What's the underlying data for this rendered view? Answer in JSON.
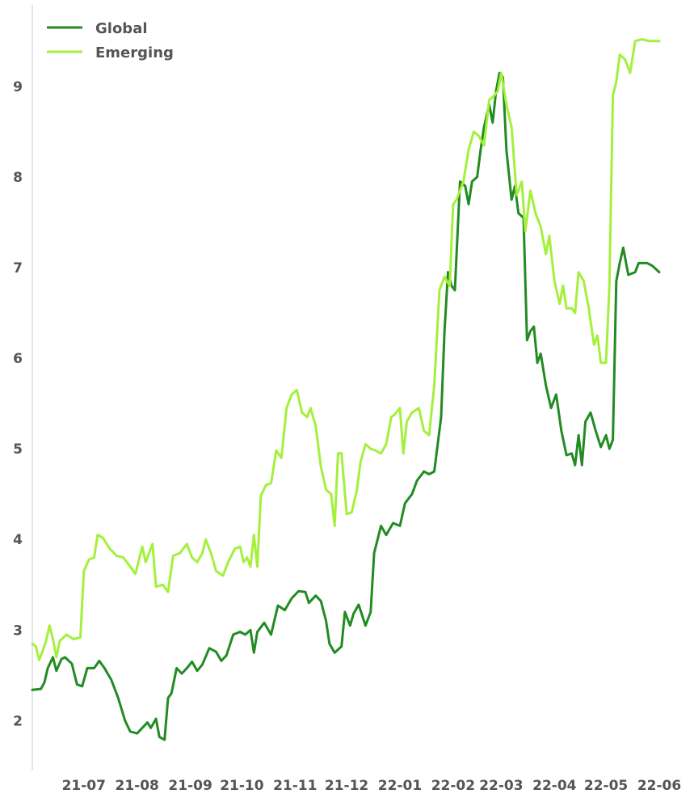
{
  "chart_data": {
    "type": "line",
    "title": "",
    "xlabel": "",
    "ylabel": "",
    "ylim": [
      1.45,
      9.9
    ],
    "xlim": [
      "2021-06-01",
      "2022-06-01"
    ],
    "grid": false,
    "legend_position": "top-left",
    "y_ticks": [
      2,
      3,
      4,
      5,
      6,
      7,
      8,
      9
    ],
    "x_ticks": [
      {
        "date": "2021-07-01",
        "label": "21-07"
      },
      {
        "date": "2021-08-01",
        "label": "21-08"
      },
      {
        "date": "2021-09-01",
        "label": "21-09"
      },
      {
        "date": "2021-10-01",
        "label": "21-10"
      },
      {
        "date": "2021-11-01",
        "label": "21-11"
      },
      {
        "date": "2021-12-01",
        "label": "21-12"
      },
      {
        "date": "2022-01-01",
        "label": "22-01"
      },
      {
        "date": "2022-02-01",
        "label": "22-02"
      },
      {
        "date": "2022-03-01",
        "label": "22-03"
      },
      {
        "date": "2022-04-01",
        "label": "22-04"
      },
      {
        "date": "2022-05-01",
        "label": "22-05"
      },
      {
        "date": "2022-06-01",
        "label": "22-06"
      }
    ],
    "series": [
      {
        "name": "Global",
        "color": "#228b22",
        "points": [
          [
            "2021-06-01",
            2.34
          ],
          [
            "2021-06-06",
            2.35
          ],
          [
            "2021-06-08",
            2.42
          ],
          [
            "2021-06-10",
            2.58
          ],
          [
            "2021-06-13",
            2.7
          ],
          [
            "2021-06-15",
            2.55
          ],
          [
            "2021-06-18",
            2.68
          ],
          [
            "2021-06-20",
            2.7
          ],
          [
            "2021-06-24",
            2.63
          ],
          [
            "2021-06-27",
            2.4
          ],
          [
            "2021-06-30",
            2.38
          ],
          [
            "2021-07-03",
            2.58
          ],
          [
            "2021-07-07",
            2.58
          ],
          [
            "2021-07-10",
            2.66
          ],
          [
            "2021-07-13",
            2.58
          ],
          [
            "2021-07-17",
            2.45
          ],
          [
            "2021-07-21",
            2.25
          ],
          [
            "2021-07-25",
            2.0
          ],
          [
            "2021-07-28",
            1.88
          ],
          [
            "2021-08-01",
            1.86
          ],
          [
            "2021-08-04",
            1.92
          ],
          [
            "2021-08-07",
            1.98
          ],
          [
            "2021-08-09",
            1.92
          ],
          [
            "2021-08-12",
            2.02
          ],
          [
            "2021-08-14",
            1.82
          ],
          [
            "2021-08-17",
            1.79
          ],
          [
            "2021-08-19",
            2.25
          ],
          [
            "2021-08-21",
            2.3
          ],
          [
            "2021-08-24",
            2.58
          ],
          [
            "2021-08-27",
            2.52
          ],
          [
            "2021-08-30",
            2.58
          ],
          [
            "2021-09-02",
            2.65
          ],
          [
            "2021-09-05",
            2.55
          ],
          [
            "2021-09-08",
            2.62
          ],
          [
            "2021-09-12",
            2.8
          ],
          [
            "2021-09-16",
            2.76
          ],
          [
            "2021-09-19",
            2.66
          ],
          [
            "2021-09-22",
            2.72
          ],
          [
            "2021-09-26",
            2.95
          ],
          [
            "2021-09-30",
            2.98
          ],
          [
            "2021-10-03",
            2.95
          ],
          [
            "2021-10-06",
            3.0
          ],
          [
            "2021-10-08",
            2.75
          ],
          [
            "2021-10-10",
            2.98
          ],
          [
            "2021-10-14",
            3.08
          ],
          [
            "2021-10-18",
            2.95
          ],
          [
            "2021-10-22",
            3.27
          ],
          [
            "2021-10-26",
            3.22
          ],
          [
            "2021-10-30",
            3.35
          ],
          [
            "2021-11-03",
            3.43
          ],
          [
            "2021-11-07",
            3.42
          ],
          [
            "2021-11-09",
            3.3
          ],
          [
            "2021-11-13",
            3.38
          ],
          [
            "2021-11-16",
            3.32
          ],
          [
            "2021-11-19",
            3.1
          ],
          [
            "2021-11-21",
            2.85
          ],
          [
            "2021-11-24",
            2.75
          ],
          [
            "2021-11-28",
            2.82
          ],
          [
            "2021-11-30",
            3.2
          ],
          [
            "2021-12-03",
            3.05
          ],
          [
            "2021-12-05",
            3.18
          ],
          [
            "2021-12-08",
            3.28
          ],
          [
            "2021-12-12",
            3.05
          ],
          [
            "2021-12-15",
            3.2
          ],
          [
            "2021-12-17",
            3.85
          ],
          [
            "2021-12-21",
            4.15
          ],
          [
            "2021-12-24",
            4.05
          ],
          [
            "2021-12-28",
            4.18
          ],
          [
            "2022-01-01",
            4.15
          ],
          [
            "2022-01-04",
            4.4
          ],
          [
            "2022-01-08",
            4.5
          ],
          [
            "2022-01-11",
            4.65
          ],
          [
            "2022-01-15",
            4.75
          ],
          [
            "2022-01-18",
            4.72
          ],
          [
            "2022-01-21",
            4.75
          ],
          [
            "2022-01-25",
            5.35
          ],
          [
            "2022-01-27",
            6.3
          ],
          [
            "2022-01-29",
            6.95
          ],
          [
            "2022-01-31",
            6.8
          ],
          [
            "2022-02-02",
            6.75
          ],
          [
            "2022-02-05",
            7.95
          ],
          [
            "2022-02-08",
            7.9
          ],
          [
            "2022-02-10",
            7.7
          ],
          [
            "2022-02-12",
            7.95
          ],
          [
            "2022-02-15",
            8.0
          ],
          [
            "2022-02-17",
            8.3
          ],
          [
            "2022-02-19",
            8.55
          ],
          [
            "2022-02-22",
            8.8
          ],
          [
            "2022-02-24",
            8.6
          ],
          [
            "2022-02-26",
            8.95
          ],
          [
            "2022-02-28",
            9.15
          ],
          [
            "2022-03-02",
            9.1
          ],
          [
            "2022-03-04",
            8.3
          ],
          [
            "2022-03-07",
            7.75
          ],
          [
            "2022-03-09",
            7.9
          ],
          [
            "2022-03-11",
            7.6
          ],
          [
            "2022-03-14",
            7.55
          ],
          [
            "2022-03-16",
            6.2
          ],
          [
            "2022-03-18",
            6.3
          ],
          [
            "2022-03-20",
            6.35
          ],
          [
            "2022-03-22",
            5.95
          ],
          [
            "2022-03-24",
            6.05
          ],
          [
            "2022-03-27",
            5.7
          ],
          [
            "2022-03-30",
            5.45
          ],
          [
            "2022-04-02",
            5.6
          ],
          [
            "2022-04-05",
            5.2
          ],
          [
            "2022-04-08",
            4.93
          ],
          [
            "2022-04-11",
            4.95
          ],
          [
            "2022-04-13",
            4.82
          ],
          [
            "2022-04-15",
            5.15
          ],
          [
            "2022-04-17",
            4.82
          ],
          [
            "2022-04-19",
            5.3
          ],
          [
            "2022-04-22",
            5.4
          ],
          [
            "2022-04-25",
            5.2
          ],
          [
            "2022-04-28",
            5.02
          ],
          [
            "2022-05-01",
            5.15
          ],
          [
            "2022-05-03",
            5.0
          ],
          [
            "2022-05-05",
            5.1
          ],
          [
            "2022-05-07",
            6.85
          ],
          [
            "2022-05-09",
            7.05
          ],
          [
            "2022-05-11",
            7.22
          ],
          [
            "2022-05-14",
            6.92
          ],
          [
            "2022-05-18",
            6.95
          ],
          [
            "2022-05-20",
            7.05
          ],
          [
            "2022-05-25",
            7.05
          ],
          [
            "2022-05-28",
            7.02
          ],
          [
            "2022-06-01",
            6.95
          ]
        ]
      },
      {
        "name": "Emerging",
        "color": "#a4f03c",
        "points": [
          [
            "2021-06-01",
            2.85
          ],
          [
            "2021-06-03",
            2.82
          ],
          [
            "2021-06-05",
            2.67
          ],
          [
            "2021-06-07",
            2.77
          ],
          [
            "2021-06-09",
            2.88
          ],
          [
            "2021-06-11",
            3.05
          ],
          [
            "2021-06-13",
            2.9
          ],
          [
            "2021-06-15",
            2.7
          ],
          [
            "2021-06-17",
            2.88
          ],
          [
            "2021-06-21",
            2.95
          ],
          [
            "2021-06-25",
            2.9
          ],
          [
            "2021-06-29",
            2.92
          ],
          [
            "2021-07-01",
            3.65
          ],
          [
            "2021-07-04",
            3.78
          ],
          [
            "2021-07-07",
            3.8
          ],
          [
            "2021-07-09",
            4.05
          ],
          [
            "2021-07-12",
            4.02
          ],
          [
            "2021-07-16",
            3.9
          ],
          [
            "2021-07-20",
            3.82
          ],
          [
            "2021-07-24",
            3.8
          ],
          [
            "2021-07-28",
            3.7
          ],
          [
            "2021-07-31",
            3.62
          ],
          [
            "2021-08-04",
            3.92
          ],
          [
            "2021-08-06",
            3.75
          ],
          [
            "2021-08-10",
            3.95
          ],
          [
            "2021-08-12",
            3.48
          ],
          [
            "2021-08-16",
            3.5
          ],
          [
            "2021-08-19",
            3.42
          ],
          [
            "2021-08-22",
            3.82
          ],
          [
            "2021-08-26",
            3.85
          ],
          [
            "2021-08-30",
            3.95
          ],
          [
            "2021-09-02",
            3.8
          ],
          [
            "2021-09-05",
            3.75
          ],
          [
            "2021-09-08",
            3.85
          ],
          [
            "2021-09-10",
            4.0
          ],
          [
            "2021-09-13",
            3.85
          ],
          [
            "2021-09-16",
            3.65
          ],
          [
            "2021-09-20",
            3.6
          ],
          [
            "2021-09-23",
            3.75
          ],
          [
            "2021-09-27",
            3.9
          ],
          [
            "2021-09-30",
            3.92
          ],
          [
            "2021-10-02",
            3.75
          ],
          [
            "2021-10-04",
            3.8
          ],
          [
            "2021-10-06",
            3.7
          ],
          [
            "2021-10-08",
            4.05
          ],
          [
            "2021-10-10",
            3.7
          ],
          [
            "2021-10-12",
            4.48
          ],
          [
            "2021-10-15",
            4.6
          ],
          [
            "2021-10-18",
            4.62
          ],
          [
            "2021-10-21",
            4.98
          ],
          [
            "2021-10-24",
            4.9
          ],
          [
            "2021-10-27",
            5.45
          ],
          [
            "2021-10-30",
            5.6
          ],
          [
            "2021-11-02",
            5.65
          ],
          [
            "2021-11-05",
            5.4
          ],
          [
            "2021-11-08",
            5.35
          ],
          [
            "2021-11-10",
            5.45
          ],
          [
            "2021-11-13",
            5.25
          ],
          [
            "2021-11-16",
            4.8
          ],
          [
            "2021-11-19",
            4.55
          ],
          [
            "2021-11-22",
            4.5
          ],
          [
            "2021-11-24",
            4.15
          ],
          [
            "2021-11-26",
            4.95
          ],
          [
            "2021-11-28",
            4.95
          ],
          [
            "2021-12-01",
            4.28
          ],
          [
            "2021-12-04",
            4.3
          ],
          [
            "2021-12-07",
            4.55
          ],
          [
            "2021-12-09",
            4.85
          ],
          [
            "2021-12-12",
            5.05
          ],
          [
            "2021-12-15",
            5.0
          ],
          [
            "2021-12-18",
            4.98
          ],
          [
            "2021-12-21",
            4.95
          ],
          [
            "2021-12-24",
            5.05
          ],
          [
            "2021-12-27",
            5.35
          ],
          [
            "2021-12-29",
            5.38
          ],
          [
            "2022-01-01",
            5.45
          ],
          [
            "2022-01-03",
            4.95
          ],
          [
            "2022-01-05",
            5.3
          ],
          [
            "2022-01-08",
            5.4
          ],
          [
            "2022-01-12",
            5.45
          ],
          [
            "2022-01-15",
            5.2
          ],
          [
            "2022-01-18",
            5.15
          ],
          [
            "2022-01-21",
            5.7
          ],
          [
            "2022-01-24",
            6.75
          ],
          [
            "2022-01-27",
            6.9
          ],
          [
            "2022-01-30",
            6.8
          ],
          [
            "2022-02-01",
            7.7
          ],
          [
            "2022-02-03",
            7.75
          ],
          [
            "2022-02-07",
            7.95
          ],
          [
            "2022-02-10",
            8.3
          ],
          [
            "2022-02-13",
            8.5
          ],
          [
            "2022-02-16",
            8.45
          ],
          [
            "2022-02-19",
            8.35
          ],
          [
            "2022-02-22",
            8.85
          ],
          [
            "2022-02-25",
            8.9
          ],
          [
            "2022-02-27",
            8.95
          ],
          [
            "2022-03-01",
            9.15
          ],
          [
            "2022-03-04",
            8.8
          ],
          [
            "2022-03-07",
            8.55
          ],
          [
            "2022-03-10",
            7.8
          ],
          [
            "2022-03-13",
            7.95
          ],
          [
            "2022-03-15",
            7.4
          ],
          [
            "2022-03-18",
            7.85
          ],
          [
            "2022-03-21",
            7.6
          ],
          [
            "2022-03-24",
            7.45
          ],
          [
            "2022-03-27",
            7.15
          ],
          [
            "2022-03-29",
            7.35
          ],
          [
            "2022-04-01",
            6.85
          ],
          [
            "2022-04-04",
            6.6
          ],
          [
            "2022-04-06",
            6.8
          ],
          [
            "2022-04-08",
            6.55
          ],
          [
            "2022-04-11",
            6.55
          ],
          [
            "2022-04-13",
            6.5
          ],
          [
            "2022-04-15",
            6.95
          ],
          [
            "2022-04-18",
            6.85
          ],
          [
            "2022-04-21",
            6.55
          ],
          [
            "2022-04-24",
            6.15
          ],
          [
            "2022-04-26",
            6.25
          ],
          [
            "2022-04-28",
            5.95
          ],
          [
            "2022-05-01",
            5.95
          ],
          [
            "2022-05-03",
            6.8
          ],
          [
            "2022-05-05",
            8.9
          ],
          [
            "2022-05-07",
            9.05
          ],
          [
            "2022-05-09",
            9.35
          ],
          [
            "2022-05-12",
            9.3
          ],
          [
            "2022-05-15",
            9.15
          ],
          [
            "2022-05-18",
            9.5
          ],
          [
            "2022-05-22",
            9.52
          ],
          [
            "2022-05-26",
            9.5
          ],
          [
            "2022-06-01",
            9.5
          ]
        ]
      }
    ]
  }
}
